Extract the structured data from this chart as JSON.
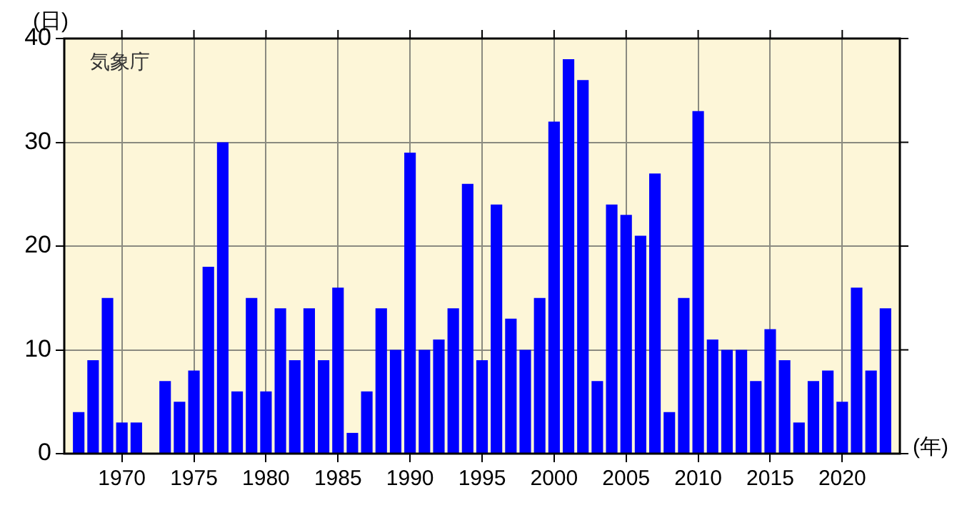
{
  "chart_data": {
    "type": "bar",
    "ylabel": "(日)",
    "xlabel": "(年)",
    "annotations": [
      "気象庁"
    ],
    "x": [
      1967,
      1968,
      1969,
      1970,
      1971,
      1972,
      1973,
      1974,
      1975,
      1976,
      1977,
      1978,
      1979,
      1980,
      1981,
      1982,
      1983,
      1984,
      1985,
      1986,
      1987,
      1988,
      1989,
      1990,
      1991,
      1992,
      1993,
      1994,
      1995,
      1996,
      1997,
      1998,
      1999,
      2000,
      2001,
      2002,
      2003,
      2004,
      2005,
      2006,
      2007,
      2008,
      2009,
      2010,
      2011,
      2012,
      2013,
      2014,
      2015,
      2016,
      2017,
      2018,
      2019,
      2020,
      2021,
      2022,
      2023
    ],
    "values": [
      4,
      9,
      15,
      3,
      3,
      0,
      7,
      5,
      8,
      18,
      30,
      6,
      15,
      6,
      14,
      9,
      14,
      9,
      16,
      2,
      6,
      14,
      10,
      29,
      10,
      11,
      14,
      26,
      9,
      24,
      13,
      10,
      15,
      32,
      38,
      36,
      7,
      24,
      23,
      21,
      27,
      4,
      15,
      33,
      11,
      10,
      10,
      7,
      12,
      9,
      3,
      7,
      8,
      5,
      16,
      8,
      14
    ],
    "color": "#0000ff",
    "xlim": [
      1966,
      2024
    ],
    "xticks": [
      1970,
      1975,
      1980,
      1985,
      1990,
      1995,
      2000,
      2005,
      2010,
      2015,
      2020
    ],
    "ylim": [
      0,
      40
    ],
    "yticks": [
      0,
      10,
      20,
      30,
      40
    ],
    "grid": true,
    "legend": false
  }
}
